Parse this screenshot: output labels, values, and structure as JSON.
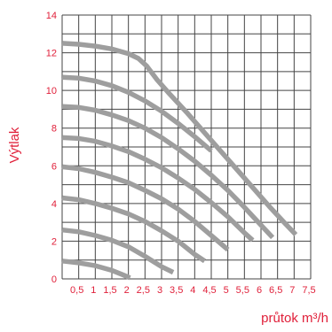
{
  "colors": {
    "grid": "#444444",
    "axis_text": "#e0203a",
    "curve": "#9e9e9e"
  },
  "chart_data": {
    "type": "line",
    "title": "",
    "xlabel": "průtok m³/h",
    "ylabel": "Výtlak",
    "xlim": [
      0,
      7.5
    ],
    "ylim": [
      0,
      14
    ],
    "x_ticks": [
      "0,5",
      "1",
      "1,5",
      "2",
      "2,5",
      "3",
      "3,5",
      "4",
      "4,5",
      "5",
      "5,5",
      "6",
      "6,5",
      "7",
      "7,5"
    ],
    "y_ticks": [
      "0",
      "2",
      "4",
      "6",
      "8",
      "10",
      "12",
      "14"
    ],
    "grid": true,
    "series": [
      {
        "points": [
          [
            0,
            0.95
          ],
          [
            0.5,
            0.85
          ],
          [
            1,
            0.7
          ],
          [
            1.5,
            0.45
          ],
          [
            1.85,
            0.2
          ],
          [
            2.05,
            0.05
          ]
        ]
      },
      {
        "points": [
          [
            0,
            2.6
          ],
          [
            0.5,
            2.5
          ],
          [
            1,
            2.3
          ],
          [
            1.5,
            2.05
          ],
          [
            2,
            1.7
          ],
          [
            2.5,
            1.2
          ],
          [
            3,
            0.65
          ],
          [
            3.35,
            0.35
          ]
        ]
      },
      {
        "points": [
          [
            0,
            4.3
          ],
          [
            0.5,
            4.2
          ],
          [
            1,
            4.0
          ],
          [
            1.5,
            3.75
          ],
          [
            2,
            3.45
          ],
          [
            2.5,
            3.05
          ],
          [
            3,
            2.55
          ],
          [
            3.5,
            2.0
          ],
          [
            4,
            1.3
          ],
          [
            4.3,
            0.95
          ]
        ]
      },
      {
        "points": [
          [
            0,
            5.95
          ],
          [
            0.5,
            5.85
          ],
          [
            1,
            5.65
          ],
          [
            1.5,
            5.4
          ],
          [
            2,
            5.1
          ],
          [
            2.5,
            4.7
          ],
          [
            3,
            4.25
          ],
          [
            3.5,
            3.7
          ],
          [
            4,
            3.05
          ],
          [
            4.5,
            2.3
          ],
          [
            5,
            1.55
          ]
        ]
      },
      {
        "points": [
          [
            0,
            7.5
          ],
          [
            0.5,
            7.45
          ],
          [
            1,
            7.3
          ],
          [
            1.5,
            7.05
          ],
          [
            2,
            6.75
          ],
          [
            2.5,
            6.35
          ],
          [
            3,
            5.9
          ],
          [
            3.5,
            5.35
          ],
          [
            4,
            4.75
          ],
          [
            4.5,
            4.05
          ],
          [
            5,
            3.3
          ],
          [
            5.5,
            2.45
          ],
          [
            5.75,
            2.05
          ]
        ]
      },
      {
        "points": [
          [
            0,
            9.15
          ],
          [
            0.5,
            9.1
          ],
          [
            1,
            8.95
          ],
          [
            1.5,
            8.7
          ],
          [
            2,
            8.4
          ],
          [
            2.5,
            8.0
          ],
          [
            3,
            7.5
          ],
          [
            3.5,
            6.9
          ],
          [
            4,
            6.25
          ],
          [
            4.5,
            5.5
          ],
          [
            5,
            4.7
          ],
          [
            5.5,
            3.8
          ],
          [
            6,
            2.85
          ],
          [
            6.35,
            2.2
          ]
        ]
      },
      {
        "points": [
          [
            0,
            10.7
          ],
          [
            0.5,
            10.65
          ],
          [
            1,
            10.5
          ],
          [
            1.5,
            10.25
          ],
          [
            2,
            9.9
          ],
          [
            2.5,
            9.45
          ],
          [
            3,
            8.9
          ],
          [
            3.5,
            8.25
          ],
          [
            4,
            7.55
          ],
          [
            4.5,
            6.8
          ]
        ]
      },
      {
        "points": [
          [
            0,
            12.5
          ],
          [
            0.5,
            12.45
          ],
          [
            1,
            12.35
          ],
          [
            1.5,
            12.2
          ],
          [
            2,
            11.95
          ],
          [
            2.3,
            11.7
          ],
          [
            2.55,
            11.3
          ],
          [
            2.85,
            10.6
          ],
          [
            3.25,
            9.8
          ],
          [
            3.75,
            8.85
          ],
          [
            4.25,
            7.85
          ],
          [
            4.75,
            6.85
          ],
          [
            5.25,
            5.85
          ],
          [
            5.75,
            4.85
          ],
          [
            6.25,
            3.85
          ],
          [
            6.75,
            2.9
          ],
          [
            7.05,
            2.35
          ]
        ]
      }
    ]
  }
}
